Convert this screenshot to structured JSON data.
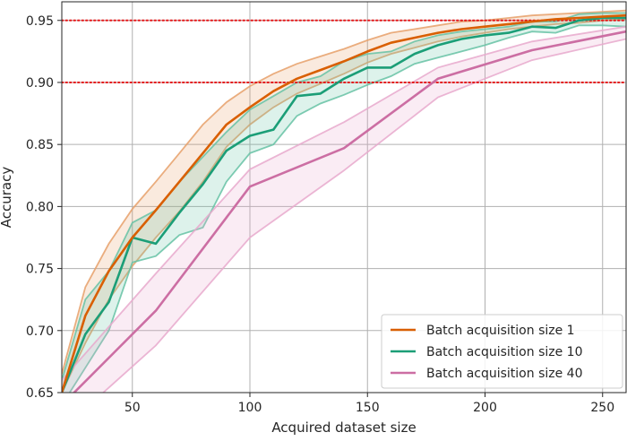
{
  "chart_data": {
    "type": "line",
    "title": "",
    "xlabel": "Acquired dataset size",
    "ylabel": "Accuracy",
    "xlim": [
      20,
      260
    ],
    "ylim": [
      0.65,
      0.965
    ],
    "x_ticks": [
      50,
      100,
      150,
      200,
      250
    ],
    "x_tick_labels": [
      "50",
      "100",
      "150",
      "200",
      "250"
    ],
    "y_ticks": [
      0.65,
      0.7,
      0.75,
      0.8,
      0.85,
      0.9,
      0.95
    ],
    "y_tick_labels": [
      "0.65",
      "0.70",
      "0.75",
      "0.80",
      "0.85",
      "0.90",
      "0.95"
    ],
    "grid": true,
    "legend_position": "bottom-right",
    "reference_lines": [
      {
        "y": 0.95,
        "color": "#e41a1c",
        "style": "dotted"
      },
      {
        "y": 0.9,
        "color": "#e41a1c",
        "style": "dotted"
      }
    ],
    "series": [
      {
        "name": "Batch acquisition size 1",
        "color": "#d95f02",
        "band_color": "#e6a06a",
        "x": [
          20,
          30,
          40,
          50,
          60,
          70,
          80,
          90,
          100,
          110,
          120,
          130,
          140,
          150,
          160,
          170,
          180,
          190,
          200,
          210,
          220,
          230,
          240,
          250,
          260
        ],
        "mean": [
          0.65,
          0.712,
          0.748,
          0.775,
          0.797,
          0.82,
          0.843,
          0.866,
          0.88,
          0.893,
          0.903,
          0.91,
          0.917,
          0.925,
          0.932,
          0.936,
          0.94,
          0.943,
          0.945,
          0.947,
          0.949,
          0.951,
          0.952,
          0.953,
          0.954
        ],
        "lower": [
          0.65,
          0.69,
          0.725,
          0.752,
          0.775,
          0.796,
          0.82,
          0.848,
          0.866,
          0.88,
          0.891,
          0.899,
          0.907,
          0.916,
          0.923,
          0.928,
          0.933,
          0.937,
          0.94,
          0.943,
          0.945,
          0.947,
          0.948,
          0.95,
          0.951
        ],
        "upper": [
          0.665,
          0.735,
          0.77,
          0.798,
          0.82,
          0.843,
          0.866,
          0.884,
          0.897,
          0.907,
          0.915,
          0.921,
          0.927,
          0.934,
          0.94,
          0.943,
          0.946,
          0.949,
          0.95,
          0.952,
          0.954,
          0.955,
          0.956,
          0.957,
          0.958
        ]
      },
      {
        "name": "Batch acquisition size 10",
        "color": "#1b9e77",
        "band_color": "#66c2a5",
        "x": [
          20,
          30,
          40,
          50,
          60,
          70,
          80,
          90,
          100,
          110,
          120,
          130,
          140,
          150,
          160,
          170,
          180,
          190,
          200,
          210,
          220,
          230,
          240,
          250,
          260
        ],
        "mean": [
          0.65,
          0.697,
          0.723,
          0.775,
          0.77,
          0.795,
          0.818,
          0.845,
          0.857,
          0.862,
          0.889,
          0.891,
          0.903,
          0.912,
          0.912,
          0.923,
          0.93,
          0.935,
          0.938,
          0.94,
          0.945,
          0.944,
          0.95,
          0.952,
          0.952
        ],
        "lower": [
          0.64,
          0.67,
          0.7,
          0.755,
          0.76,
          0.777,
          0.783,
          0.82,
          0.843,
          0.85,
          0.873,
          0.883,
          0.89,
          0.898,
          0.905,
          0.915,
          0.92,
          0.925,
          0.93,
          0.936,
          0.941,
          0.94,
          0.946,
          0.946,
          0.945
        ],
        "upper": [
          0.66,
          0.725,
          0.748,
          0.787,
          0.797,
          0.82,
          0.84,
          0.86,
          0.878,
          0.889,
          0.9,
          0.905,
          0.917,
          0.923,
          0.925,
          0.933,
          0.938,
          0.941,
          0.943,
          0.945,
          0.949,
          0.949,
          0.955,
          0.956,
          0.956
        ]
      },
      {
        "name": "Batch acquisition size 40",
        "color": "#cc6ea3",
        "band_color": "#e7a9cc",
        "x": [
          20,
          60,
          100,
          140,
          180,
          220,
          260
        ],
        "mean": [
          0.64,
          0.716,
          0.816,
          0.847,
          0.903,
          0.926,
          0.941
        ],
        "lower": [
          0.62,
          0.688,
          0.775,
          0.829,
          0.888,
          0.918,
          0.935
        ],
        "upper": [
          0.66,
          0.746,
          0.83,
          0.868,
          0.912,
          0.933,
          0.945
        ]
      }
    ]
  }
}
